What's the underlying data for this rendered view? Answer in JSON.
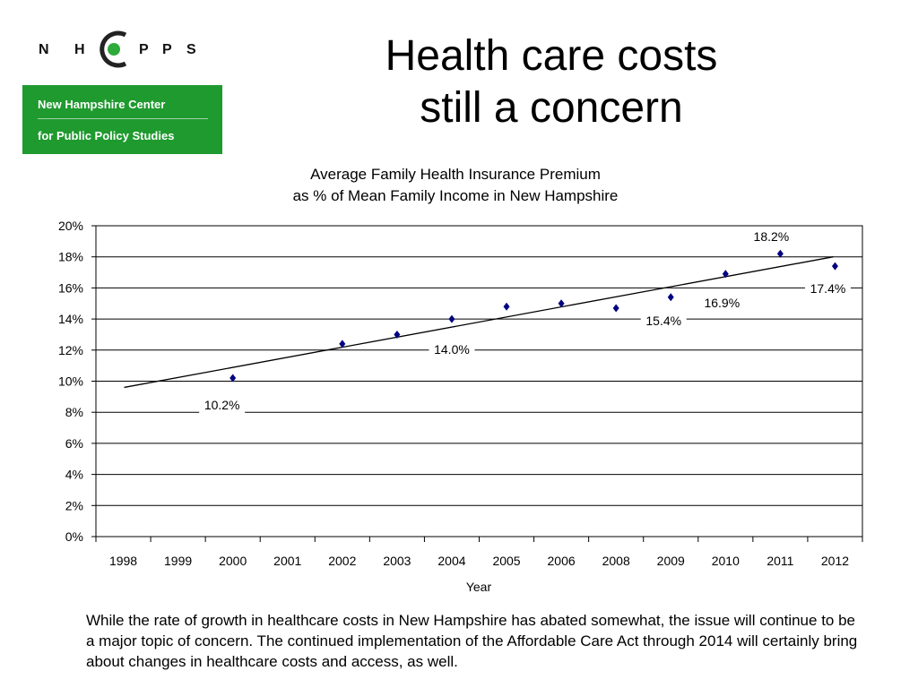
{
  "logo": {
    "wordmark": "NHCPPS",
    "line1": "New Hampshire Center",
    "line2": "for Public Policy Studies",
    "colors": {
      "green": "#1f9a2f",
      "dot": "#2eab3a"
    }
  },
  "slide": {
    "title_line1": "Health care costs",
    "title_line2": "still a concern"
  },
  "chart_data": {
    "type": "scatter",
    "title_line1": "Average Family Health Insurance Premium",
    "title_line2": "as % of Mean Family Income in New Hampshire",
    "xlabel": "Year",
    "ylabel": "",
    "categories": [
      "1998",
      "1999",
      "2000",
      "2001",
      "2002",
      "2003",
      "2004",
      "2005",
      "2006",
      "2008",
      "2009",
      "2010",
      "2011",
      "2012"
    ],
    "ylim": [
      0,
      20
    ],
    "yticks": [
      "0%",
      "2%",
      "4%",
      "6%",
      "8%",
      "10%",
      "12%",
      "14%",
      "16%",
      "18%",
      "20%"
    ],
    "grid": true,
    "series": [
      {
        "points": [
          {
            "x": "2000",
            "y": 10.2,
            "label": "10.2%"
          },
          {
            "x": "2002",
            "y": 12.4
          },
          {
            "x": "2003",
            "y": 13.0
          },
          {
            "x": "2004",
            "y": 14.0,
            "label": "14.0%"
          },
          {
            "x": "2005",
            "y": 14.8
          },
          {
            "x": "2006",
            "y": 15.0
          },
          {
            "x": "2008",
            "y": 14.7
          },
          {
            "x": "2009",
            "y": 15.4,
            "label": "15.4%"
          },
          {
            "x": "2010",
            "y": 16.9,
            "label": "16.9%"
          },
          {
            "x": "2011",
            "y": 18.2,
            "label": "18.2%"
          },
          {
            "x": "2012",
            "y": 17.4,
            "label": "17.4%"
          }
        ]
      }
    ],
    "trendline": {
      "start": {
        "x": "1998",
        "y": 9.6
      },
      "end": {
        "x": "2012",
        "y": 18.0
      }
    },
    "colors": {
      "marker": "#000080",
      "trendline": "#000000",
      "grid": "#000000"
    }
  },
  "caption": "While the rate of growth in healthcare costs in New Hampshire has abated somewhat, the issue will continue to be a major topic of concern. The continued implementation of the Affordable Care Act through 2014 will certainly bring about changes in healthcare costs and access, as well."
}
